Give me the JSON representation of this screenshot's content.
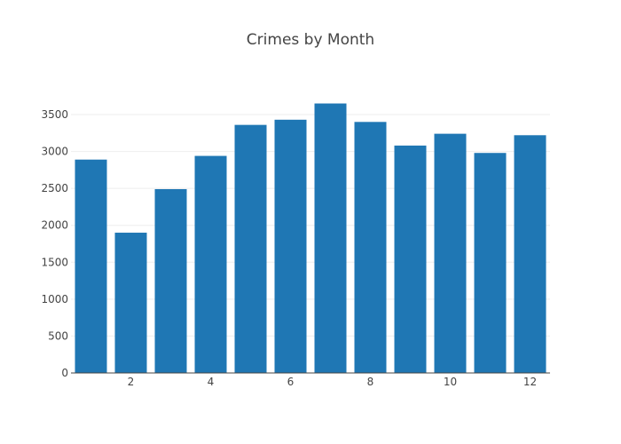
{
  "chart_data": {
    "type": "bar",
    "title": "Crimes by Month",
    "xlabel": "",
    "ylabel": "",
    "x": [
      1,
      2,
      3,
      4,
      5,
      6,
      7,
      8,
      9,
      10,
      11,
      12
    ],
    "values": [
      2890,
      1900,
      2490,
      2940,
      3360,
      3430,
      3650,
      3400,
      3080,
      3240,
      2980,
      3220
    ],
    "bar_color": "#1f77b4",
    "xlim": [
      0.5,
      12.5
    ],
    "ylim": [
      0,
      3500
    ],
    "x_ticks": [
      2,
      4,
      6,
      8,
      10,
      12
    ],
    "x_tick_labels": [
      "2",
      "4",
      "6",
      "8",
      "10",
      "12"
    ],
    "y_ticks": [
      0,
      500,
      1000,
      1500,
      2000,
      2500,
      3000,
      3500
    ],
    "y_tick_labels": [
      "0",
      "500",
      "1000",
      "1500",
      "2000",
      "2500",
      "3000",
      "3500"
    ],
    "grid": true,
    "legend": "none"
  }
}
